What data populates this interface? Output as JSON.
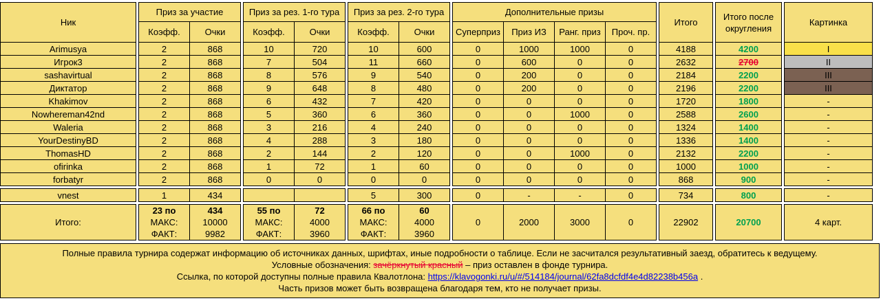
{
  "colors": {
    "page_bg": "#ffffff",
    "cell_bg": "#f5df7d",
    "border": "#000000",
    "green": "#00a050",
    "red": "#e60033",
    "link": "#0000ee",
    "gold": "#f9e04a",
    "silver": "#bdbdbd",
    "bronze": "#7b6152"
  },
  "header": {
    "nick": "Ник",
    "group_participation": "Приз за участие",
    "group_tour1": "Приз за рез. 1-го тура",
    "group_tour2": "Приз за рез. 2-го тура",
    "group_additional": "Дополнительные призы",
    "sub_coeff": "Коэфф.",
    "sub_points": "Очки",
    "sub_superprize": "Суперприз",
    "sub_iz_prize": "Приз ИЗ",
    "sub_rank_prize": "Ранг. приз",
    "sub_other_prize": "Проч. пр.",
    "total": "Итого",
    "total_rounded": "Итого после округления",
    "picture": "Картинка"
  },
  "rows": [
    {
      "nick": "Arimusya",
      "values": [
        "2",
        "868",
        "10",
        "720",
        "10",
        "600",
        "0",
        "1000",
        "1000",
        "0"
      ],
      "total": "4188",
      "rounded": "4200",
      "rounded_style": "green",
      "pic": "I",
      "pic_style": "gold"
    },
    {
      "nick": "Игрок3",
      "values": [
        "2",
        "868",
        "7",
        "504",
        "11",
        "660",
        "0",
        "600",
        "0",
        "0"
      ],
      "total": "2632",
      "rounded": "2700",
      "rounded_style": "red",
      "pic": "II",
      "pic_style": "silver"
    },
    {
      "nick": "sashavirtual",
      "values": [
        "2",
        "868",
        "8",
        "576",
        "9",
        "540",
        "0",
        "200",
        "0",
        "0"
      ],
      "total": "2184",
      "rounded": "2200",
      "rounded_style": "green",
      "pic": "III",
      "pic_style": "bronze"
    },
    {
      "nick": "Диктатор",
      "values": [
        "2",
        "868",
        "9",
        "648",
        "8",
        "480",
        "0",
        "200",
        "0",
        "0"
      ],
      "total": "2196",
      "rounded": "2200",
      "rounded_style": "green",
      "pic": "III",
      "pic_style": "bronze"
    },
    {
      "nick": "Khakimov",
      "values": [
        "2",
        "868",
        "6",
        "432",
        "7",
        "420",
        "0",
        "0",
        "0",
        "0"
      ],
      "total": "1720",
      "rounded": "1800",
      "rounded_style": "green",
      "pic": "-",
      "pic_style": null
    },
    {
      "nick": "Nowhereman42nd",
      "values": [
        "2",
        "868",
        "5",
        "360",
        "6",
        "360",
        "0",
        "0",
        "1000",
        "0"
      ],
      "total": "2588",
      "rounded": "2600",
      "rounded_style": "green",
      "pic": "-",
      "pic_style": null
    },
    {
      "nick": "Waleria",
      "values": [
        "2",
        "868",
        "3",
        "216",
        "4",
        "240",
        "0",
        "0",
        "0",
        "0"
      ],
      "total": "1324",
      "rounded": "1400",
      "rounded_style": "green",
      "pic": "-",
      "pic_style": null
    },
    {
      "nick": "YourDestinyBD",
      "values": [
        "2",
        "868",
        "4",
        "288",
        "3",
        "180",
        "0",
        "0",
        "0",
        "0"
      ],
      "total": "1336",
      "rounded": "1400",
      "rounded_style": "green",
      "pic": "-",
      "pic_style": null
    },
    {
      "nick": "ThomasHD",
      "values": [
        "2",
        "868",
        "2",
        "144",
        "2",
        "120",
        "0",
        "0",
        "1000",
        "0"
      ],
      "total": "2132",
      "rounded": "2200",
      "rounded_style": "green",
      "pic": "-",
      "pic_style": null
    },
    {
      "nick": "ofirinka",
      "values": [
        "2",
        "868",
        "1",
        "72",
        "1",
        "60",
        "0",
        "0",
        "0",
        "0"
      ],
      "total": "1000",
      "rounded": "1000",
      "rounded_style": "green",
      "pic": "-",
      "pic_style": null
    },
    {
      "nick": "forbatyr",
      "values": [
        "2",
        "868",
        "0",
        "0",
        "0",
        "0",
        "0",
        "0",
        "0",
        "0"
      ],
      "total": "868",
      "rounded": "900",
      "rounded_style": "green",
      "pic": "-",
      "pic_style": null
    }
  ],
  "vnest": {
    "nick": "vnest",
    "values": [
      "1",
      "434",
      "",
      "",
      "5",
      "300",
      "0",
      "-",
      "-",
      "0"
    ],
    "total": "734",
    "rounded": "800",
    "rounded_style": "green",
    "pic": "-",
    "pic_style": null
  },
  "totals": {
    "label": "Итого:",
    "participation": {
      "left": [
        "23 по",
        "МАКС:",
        "ФАКТ:"
      ],
      "right": [
        "434",
        "10000",
        "9982"
      ]
    },
    "tour1": {
      "left": [
        "55 по",
        "МАКС:",
        "ФАКТ:"
      ],
      "right": [
        "72",
        "4000",
        "3960"
      ]
    },
    "tour2": {
      "left": [
        "66 по",
        "МАКС:",
        "ФАКТ:"
      ],
      "right": [
        "60",
        "4000",
        "3960"
      ]
    },
    "additional": [
      "0",
      "2000",
      "3000",
      "0"
    ],
    "total": "22902",
    "rounded": "20700",
    "picture": "4 карт."
  },
  "footer": {
    "line1": "Полные правила турнира содержат информацию об источниках данных, шрифтах, иные подробности о таблице. Если не засчитался результативный заезд, обратитесь к ведущему.",
    "legend_prefix": "Условные обозначения: ",
    "legend_strike": "зачёркнутый красный",
    "legend_suffix": " – приз оставлен в фонде турнира.",
    "link_prefix": "Ссылка, по которой доступны полные правила Квалотлона: ",
    "link_url": "https://klavogonki.ru/u/#/514184/journal/62fa8dcfdf4e4d82238b456a",
    "link_suffix": " .",
    "line4": "Часть призов может быть возвращена благодаря тем, кто не получает призы."
  }
}
